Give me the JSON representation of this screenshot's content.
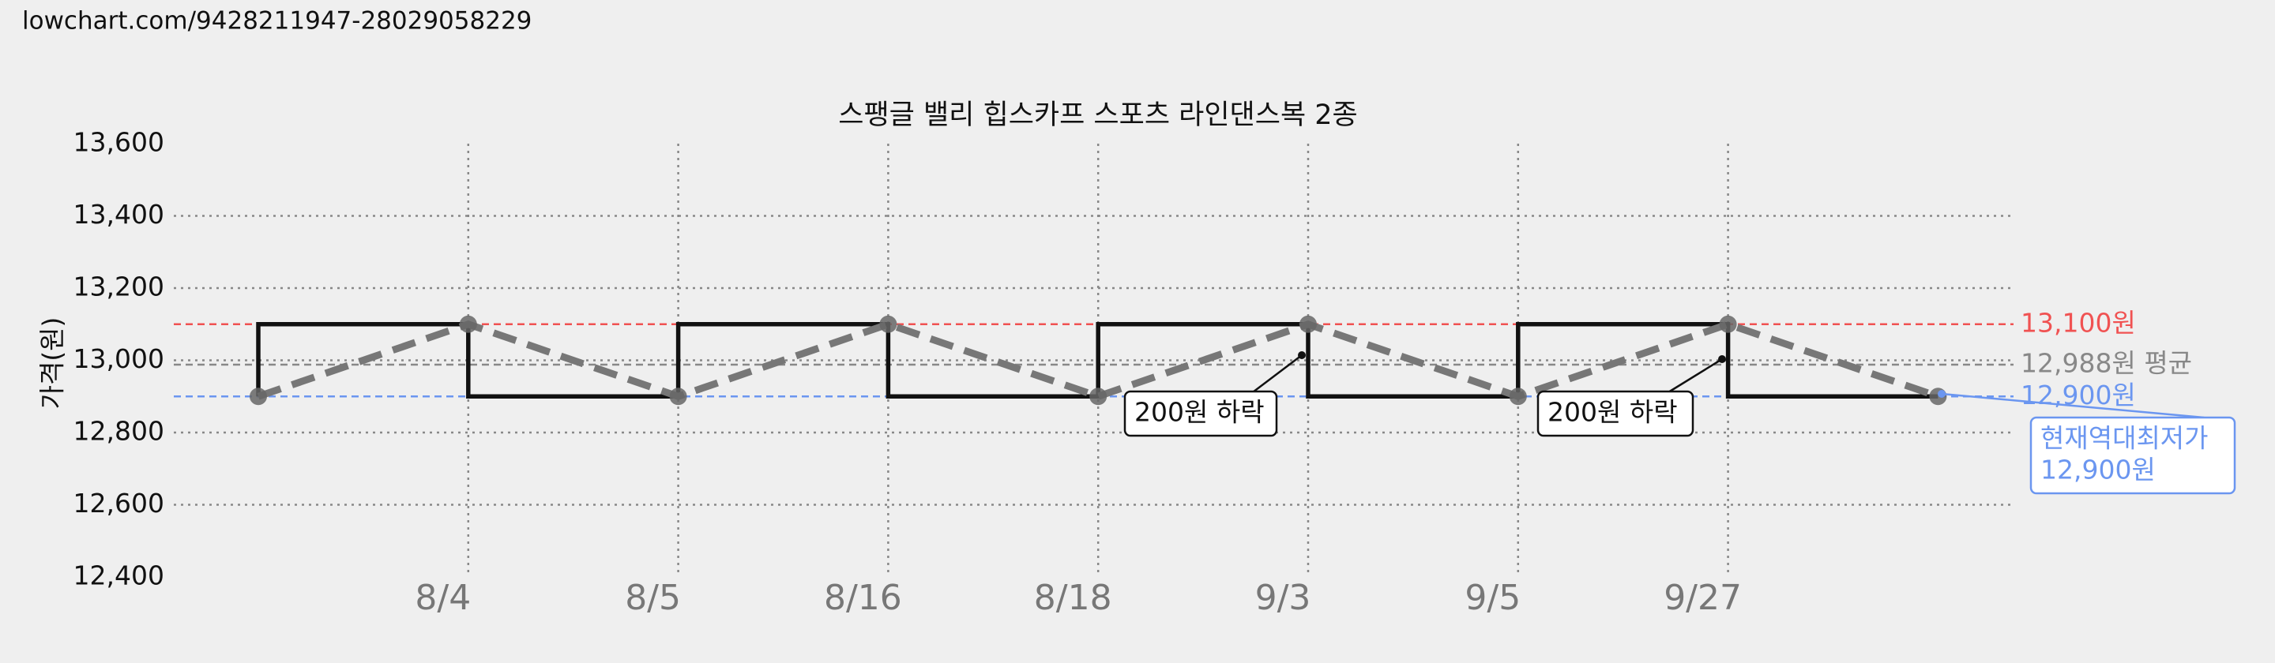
{
  "source": "lowchart.com/9428211947-28029058229",
  "chart_data": {
    "type": "line",
    "title": "스팽글 밸리 힙스카프 스포츠 라인댄스복 2종",
    "y_label": "가격(원)",
    "categories": [
      null,
      "8/4",
      "8/5",
      "8/16",
      "8/18",
      "9/3",
      "9/5",
      "9/27",
      null
    ],
    "series": [
      {
        "color": "#777777",
        "values": [
          12900,
          13100,
          12900,
          13100,
          12900,
          13100,
          12900,
          13100,
          12900
        ]
      }
    ],
    "step_color": "#111111",
    "ylim": [
      12400,
      13600
    ],
    "yticks": [
      {
        "value": 12400,
        "label": "12,400"
      },
      {
        "value": 12600,
        "label": "12,600"
      },
      {
        "value": 12800,
        "label": "12,800"
      },
      {
        "value": 13000,
        "label": "13,000"
      },
      {
        "value": 13200,
        "label": "13,200"
      },
      {
        "value": 13400,
        "label": "13,400"
      },
      {
        "value": 13600,
        "label": "13,600"
      }
    ],
    "grid": true,
    "reference_lines": [
      {
        "value": 13100,
        "label": "13,100원",
        "color": "#f05252"
      },
      {
        "value": 12988,
        "label": "12,988원 평균",
        "color": "#888888"
      },
      {
        "value": 12900,
        "label": "12,900원",
        "color": "#6b96f0"
      }
    ],
    "annotations": [
      {
        "lines": [
          "200원 하락"
        ],
        "color": "#111111"
      },
      {
        "lines": [
          "200원 하락"
        ],
        "color": "#111111"
      },
      {
        "lines": [
          "현재역대최저가",
          "12,900원"
        ],
        "color": "#6b96f0"
      }
    ]
  }
}
